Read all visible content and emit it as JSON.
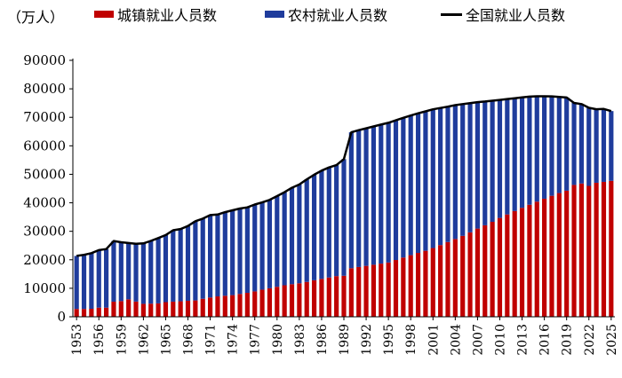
{
  "chart_data": {
    "type": "bar",
    "stacked": true,
    "unit_label": "（万人）",
    "ylim": [
      0,
      90000
    ],
    "yticks": [
      0,
      10000,
      20000,
      30000,
      40000,
      50000,
      60000,
      70000,
      80000,
      90000
    ],
    "x": [
      1953,
      1954,
      1955,
      1956,
      1957,
      1958,
      1959,
      1960,
      1961,
      1962,
      1963,
      1964,
      1965,
      1966,
      1967,
      1968,
      1969,
      1970,
      1971,
      1972,
      1973,
      1974,
      1975,
      1976,
      1977,
      1978,
      1979,
      1980,
      1981,
      1982,
      1983,
      1984,
      1985,
      1986,
      1987,
      1988,
      1989,
      1990,
      1991,
      1992,
      1993,
      1994,
      1995,
      1996,
      1997,
      1998,
      1999,
      2000,
      2001,
      2002,
      2003,
      2004,
      2005,
      2006,
      2007,
      2008,
      2009,
      2010,
      2011,
      2012,
      2013,
      2014,
      2015,
      2016,
      2017,
      2018,
      2019,
      2020,
      2021,
      2022,
      2023,
      2024,
      2025
    ],
    "xtick_labels": [
      "1953",
      "1956",
      "1959",
      "1962",
      "1965",
      "1968",
      "1971",
      "1974",
      "1977",
      "1980",
      "1983",
      "1986",
      "1989",
      "1992",
      "1995",
      "1998",
      "2001",
      "2004",
      "2007",
      "2010",
      "2013",
      "2016",
      "2019",
      "2022",
      "2025"
    ],
    "series": [
      {
        "name": "城镇就业人员数",
        "color": "#c00000",
        "values": [
          2754,
          2744,
          2802,
          3205,
          3205,
          5300,
          5500,
          6119,
          5336,
          4537,
          4603,
          4695,
          5136,
          5306,
          5433,
          5615,
          5730,
          6312,
          6752,
          7155,
          7375,
          7596,
          8000,
          8400,
          8900,
          9514,
          9999,
          10525,
          11053,
          11428,
          11746,
          12229,
          12808,
          13293,
          13783,
          14267,
          14390,
          17041,
          17465,
          17861,
          18262,
          18653,
          19040,
          19922,
          20781,
          21616,
          22412,
          23151,
          24123,
          25159,
          26230,
          27293,
          28389,
          29630,
          30953,
          32103,
          33322,
          34687,
          35914,
          37102,
          38240,
          39310,
          40410,
          41428,
          42462,
          43419,
          44247,
          46271,
          46773,
          45931,
          47032,
          47345,
          47700
        ]
      },
      {
        "name": "农村就业人员数",
        "color": "#1f3c9c",
        "values": [
          18610,
          18988,
          19526,
          20167,
          20566,
          21300,
          20673,
          19761,
          20255,
          21222,
          22037,
          22941,
          23534,
          25052,
          25373,
          26250,
          27817,
          28120,
          28947,
          28718,
          29355,
          29781,
          30000,
          30000,
          30500,
          30638,
          31025,
          31836,
          32672,
          33867,
          34690,
          35968,
          37065,
          37990,
          38632,
          38949,
          40939,
          47708,
          48026,
          48291,
          48546,
          48802,
          49025,
          49028,
          49039,
          49021,
          48982,
          48934,
          48674,
          48121,
          47506,
          46971,
          46258,
          45348,
          44368,
          43461,
          42506,
          41418,
          40506,
          39602,
          38737,
          37943,
          36970,
          35958,
          34904,
          33735,
          32706,
          28793,
          27879,
          27420,
          25823,
          25600,
          24500
        ]
      },
      {
        "name": "全国就业人员数",
        "color": "#000000",
        "type": "line",
        "values": [
          21364,
          21732,
          22328,
          23372,
          23771,
          26600,
          26173,
          25880,
          25591,
          25759,
          26640,
          27636,
          28670,
          30358,
          30806,
          31865,
          33547,
          34432,
          35699,
          35873,
          36730,
          37377,
          38000,
          38400,
          39400,
          40152,
          41024,
          42361,
          43725,
          45295,
          46436,
          48197,
          49873,
          51282,
          52415,
          53216,
          55329,
          64749,
          65491,
          66152,
          66808,
          67455,
          68065,
          68950,
          69820,
          70637,
          71394,
          72085,
          72797,
          73280,
          73736,
          74264,
          74647,
          74978,
          75321,
          75564,
          75828,
          76105,
          76420,
          76704,
          76977,
          77253,
          77380,
          77386,
          77366,
          77154,
          76953,
          75064,
          74652,
          73351,
          72855,
          72945,
          72200
        ]
      }
    ]
  }
}
